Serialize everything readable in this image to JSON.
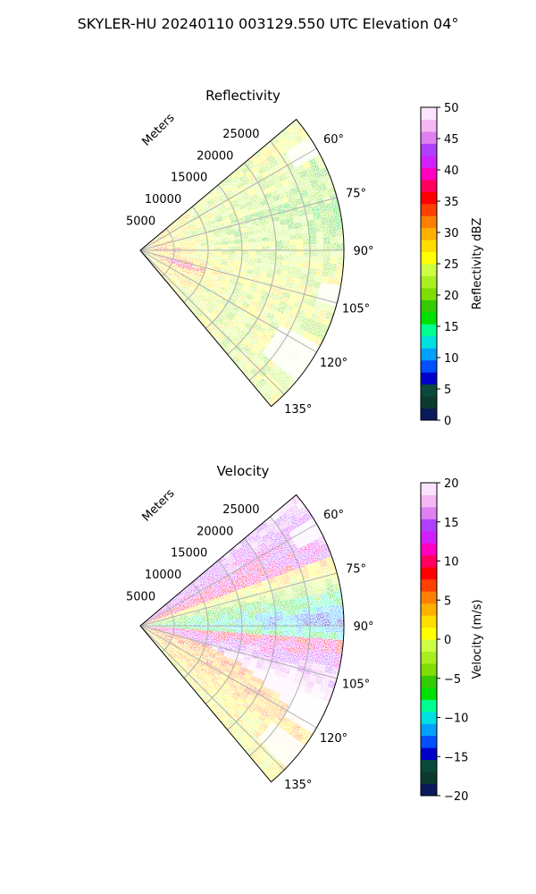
{
  "figure": {
    "title": "SKYLER-HU  20240110  003129.550 UTC Elevation 04°"
  },
  "chart_data": [
    {
      "type": "heatmap",
      "subtype": "radar-ppi-sector",
      "title": "Reflectivity",
      "radial_label": "Meters",
      "radial_ticks": [
        "5000",
        "10000",
        "15000",
        "20000",
        "25000"
      ],
      "radial_tick_values": [
        5000,
        10000,
        15000,
        20000,
        25000
      ],
      "r_max_m": 30000,
      "azimuth_range_deg": [
        50,
        140
      ],
      "azimuth_ticks": [
        "60°",
        "75°",
        "90°",
        "105°",
        "120°",
        "135°"
      ],
      "azimuth_tick_values": [
        60,
        75,
        90,
        105,
        120,
        135
      ],
      "grid": true,
      "colorbar": {
        "label": "Reflectivity dBZ",
        "range": [
          0,
          50
        ],
        "ticks": [
          "0",
          "5",
          "10",
          "15",
          "20",
          "25",
          "30",
          "35",
          "40",
          "45",
          "50"
        ],
        "tick_values": [
          0,
          5,
          10,
          15,
          20,
          25,
          30,
          35,
          40,
          45,
          50
        ],
        "colors": [
          "#0a1a5c",
          "#0d3a2e",
          "#0a4a3a",
          "#0000c8",
          "#0050ff",
          "#00a0ff",
          "#00e0e0",
          "#00ff90",
          "#00e000",
          "#33cc00",
          "#7fdd00",
          "#aaee22",
          "#ccff44",
          "#ffff00",
          "#ffdd00",
          "#ffb000",
          "#ff8000",
          "#ff4000",
          "#ff0000",
          "#ff0060",
          "#ff00c0",
          "#d020ff",
          "#b040ff",
          "#e080f0",
          "#f4b8f4",
          "#fde4fd"
        ]
      },
      "field_description": "mostly 20-30 dBZ; 33-38 dBZ band near 100-115 deg at 3-11 km and near 90 deg close to radar"
    },
    {
      "type": "heatmap",
      "subtype": "radar-ppi-sector",
      "title": "Velocity",
      "radial_label": "Meters",
      "radial_ticks": [
        "5000",
        "10000",
        "15000",
        "20000",
        "25000"
      ],
      "radial_tick_values": [
        5000,
        10000,
        15000,
        20000,
        25000
      ],
      "r_max_m": 30000,
      "azimuth_range_deg": [
        50,
        140
      ],
      "azimuth_ticks": [
        "60°",
        "75°",
        "90°",
        "105°",
        "120°",
        "135°"
      ],
      "azimuth_tick_values": [
        60,
        75,
        90,
        105,
        120,
        135
      ],
      "grid": true,
      "colorbar": {
        "label": "Velocity (m/s)",
        "range": [
          -20,
          20
        ],
        "ticks": [
          "−20",
          "−15",
          "−10",
          "−5",
          "0",
          "5",
          "10",
          "15",
          "20"
        ],
        "tick_values": [
          -20,
          -15,
          -10,
          -5,
          0,
          5,
          10,
          15,
          20
        ],
        "colors": [
          "#0a1a5c",
          "#0d3a2e",
          "#0a4a3a",
          "#0000c8",
          "#0050ff",
          "#00a0ff",
          "#00e0e0",
          "#00ff90",
          "#00e000",
          "#33cc00",
          "#7fdd00",
          "#aaee22",
          "#ccff44",
          "#ffff00",
          "#ffdd00",
          "#ffb000",
          "#ff8000",
          "#ff4000",
          "#ff0000",
          "#ff0060",
          "#ff00c0",
          "#d020ff",
          "#b040ff",
          "#e080f0",
          "#f4b8f4",
          "#fde4fd"
        ]
      },
      "field_description": "positive 5-18 m/s on north and south flanks, negative down to -12 m/s in band near 80-95 deg, sharp folding boundary near 97-125 deg"
    }
  ]
}
